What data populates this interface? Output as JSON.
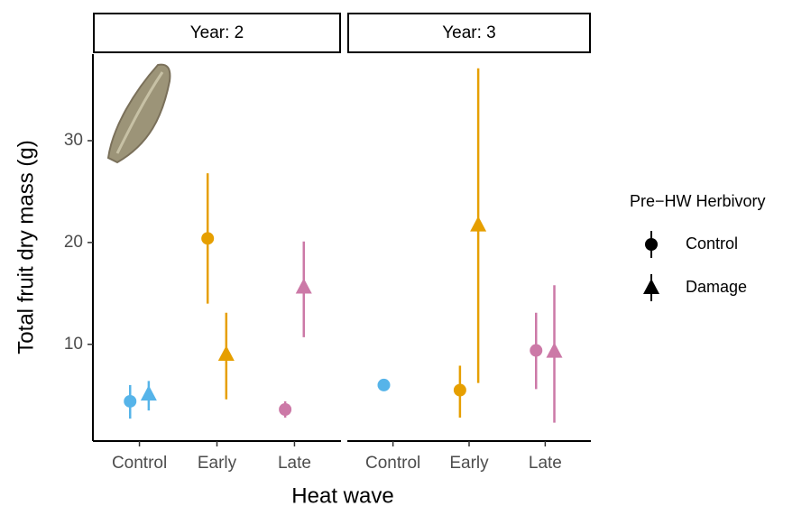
{
  "chart_data": {
    "type": "pointrange",
    "y_label": "Total fruit dry mass (g)",
    "x_label": "Heat wave",
    "legend_title": "Pre−HW Herbivory",
    "legend_position": "right",
    "categories": [
      "Control",
      "Early",
      "Late"
    ],
    "category_colors": [
      "#56B4E9",
      "#E69F00",
      "#CC79A7"
    ],
    "ylim": [
      0.5,
      38.5
    ],
    "yticks": [
      10,
      20,
      30
    ],
    "series": [
      {
        "name": "Control",
        "marker": "circle"
      },
      {
        "name": "Damage",
        "marker": "triangle"
      }
    ],
    "facets": [
      {
        "title": "Year: 2",
        "series": [
          {
            "values": [
              4.4,
              20.4,
              3.6
            ],
            "low": [
              2.7,
              14.0,
              2.8
            ],
            "high": [
              6.0,
              26.8,
              4.4
            ]
          },
          {
            "values": [
              5.1,
              9.0,
              15.6
            ],
            "low": [
              3.5,
              4.6,
              10.7
            ],
            "high": [
              6.4,
              13.1,
              20.1
            ]
          }
        ]
      },
      {
        "title": "Year: 3",
        "series": [
          {
            "values": [
              6.0,
              5.5,
              9.4
            ],
            "low": [
              null,
              2.8,
              5.6
            ],
            "high": [
              null,
              7.9,
              13.1
            ]
          },
          {
            "values": [
              null,
              21.7,
              9.3
            ],
            "low": [
              null,
              6.2,
              2.3
            ],
            "high": [
              null,
              37.1,
              15.8
            ]
          }
        ]
      }
    ]
  }
}
